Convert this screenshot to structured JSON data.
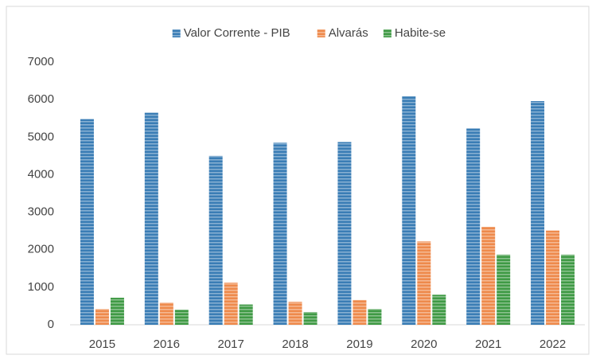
{
  "chart_data": {
    "type": "bar",
    "categories": [
      "2015",
      "2016",
      "2017",
      "2018",
      "2019",
      "2020",
      "2021",
      "2022"
    ],
    "series": [
      {
        "name": "Valor Corrente - PIB",
        "color": "#3a7db5",
        "values": [
          5480,
          5650,
          4500,
          4850,
          4870,
          6090,
          5230,
          5960
        ]
      },
      {
        "name": "Alvarás",
        "color": "#ee8a4c",
        "values": [
          420,
          590,
          1120,
          610,
          660,
          2220,
          2610,
          2510
        ]
      },
      {
        "name": "Habite-se",
        "color": "#3f9a45",
        "values": [
          720,
          400,
          540,
          340,
          420,
          800,
          1870,
          1870
        ]
      }
    ],
    "ylim": [
      0,
      7000
    ],
    "yticks": [
      0,
      1000,
      2000,
      3000,
      4000,
      5000,
      6000,
      7000
    ],
    "grid": false,
    "legend": "top"
  }
}
